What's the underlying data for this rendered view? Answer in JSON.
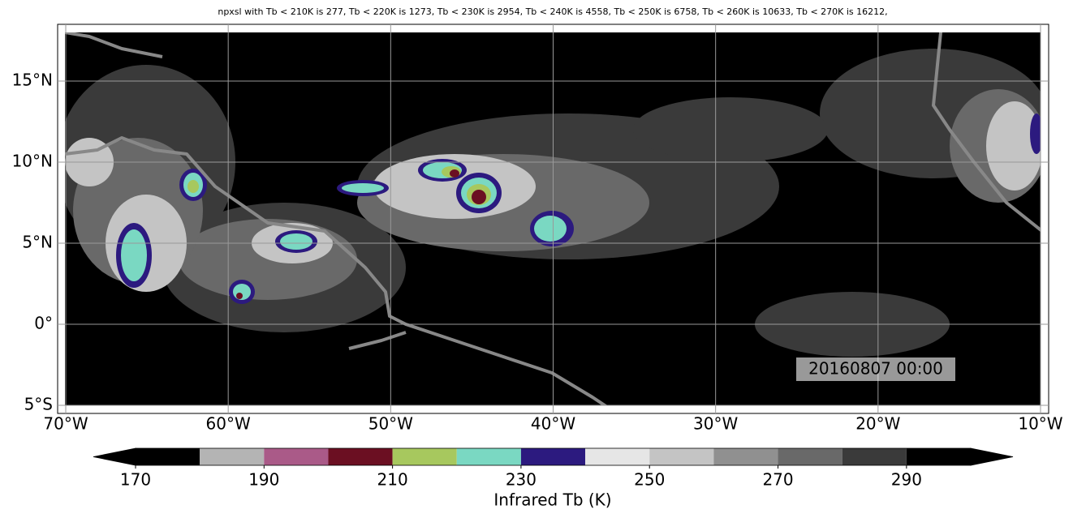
{
  "title": "npxsl with Tb < 210K is 277,  Tb < 220K is 1273,  Tb < 230K is 2954,  Tb < 240K is 4558,  Tb < 250K is 6758,  Tb < 260K is 10633,  Tb < 270K is 16212,",
  "map": {
    "xlim": [
      -70.5,
      -9.5
    ],
    "ylim": [
      -5.5,
      18.5
    ],
    "grid": true,
    "xticks": [
      {
        "value": -70,
        "label": "70°W"
      },
      {
        "value": -60,
        "label": "60°W"
      },
      {
        "value": -50,
        "label": "50°W"
      },
      {
        "value": -40,
        "label": "40°W"
      },
      {
        "value": -30,
        "label": "30°W"
      },
      {
        "value": -20,
        "label": "20°W"
      },
      {
        "value": -10,
        "label": "10°W"
      }
    ],
    "yticks": [
      {
        "value": -5,
        "label": "5°S"
      },
      {
        "value": 0,
        "label": "0°"
      },
      {
        "value": 5,
        "label": "5°N"
      },
      {
        "value": 10,
        "label": "10°N"
      },
      {
        "value": 15,
        "label": "15°N"
      }
    ],
    "annotation": "20160807 00:00"
  },
  "colorbar": {
    "label": "Infrared Tb (K)",
    "levels": [
      170,
      180,
      190,
      200,
      210,
      220,
      230,
      240,
      250,
      260,
      270,
      280,
      290,
      300
    ],
    "colors": [
      "#000000",
      "#b4b4b4",
      "#aa5a88",
      "#6b0f22",
      "#a7c85e",
      "#7ad8c2",
      "#2c1a7f",
      "#e6e6e6",
      "#c4c4c4",
      "#909090",
      "#696969",
      "#3a3a3a",
      "#000000"
    ],
    "ticks": [
      170,
      190,
      210,
      230,
      250,
      270,
      290
    ]
  }
}
